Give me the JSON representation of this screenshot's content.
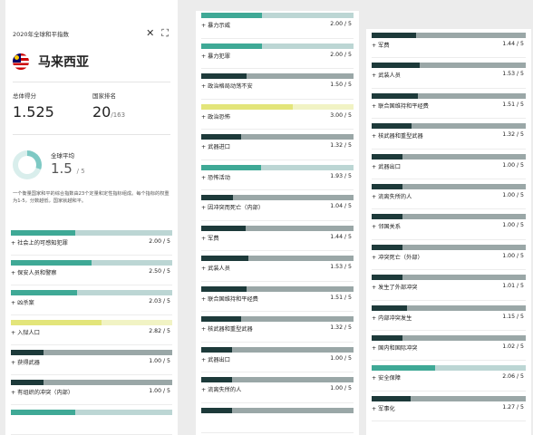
{
  "palette": {
    "teal": "#3fa996",
    "tealTrack": "#bcd6d4",
    "yellow": "#e3e57a",
    "yellowTrack": "#f1f3c4",
    "dark": "#1d3a3a",
    "darkTrack": "#9aa7a7"
  },
  "header": {
    "title": "2020年全球和平指数",
    "close_icon": "close-icon",
    "expand_icon": "expand-icon"
  },
  "country": {
    "name": "马来西亚",
    "flag_icon": "malaysia-flag-icon"
  },
  "overall": {
    "label": "总体得分",
    "value": "1.525"
  },
  "rank": {
    "label": "国家排名",
    "value": "20",
    "total": "/163"
  },
  "global_avg": {
    "label": "全球平均",
    "value": "1.5",
    "of": "/ 5"
  },
  "description": "一个衡量国家和平的综合指数由23个定量和定性指标组成。每个指标的权重为1-5，分数越低，国家就越和平。",
  "col1_rows": [
    {
      "label": "社会上的可感知犯罪",
      "value": "2.00 / 5",
      "fill": 0.4,
      "scheme": "teal"
    },
    {
      "label": "保安人员和警察",
      "value": "2.50 / 5",
      "fill": 0.5,
      "scheme": "teal"
    },
    {
      "label": "凶杀案",
      "value": "2.03 / 5",
      "fill": 0.41,
      "scheme": "teal"
    },
    {
      "label": "入狱人口",
      "value": "2.82 / 5",
      "fill": 0.56,
      "scheme": "yellow"
    },
    {
      "label": "获得武器",
      "value": "1.00 / 5",
      "fill": 0.2,
      "scheme": "dark"
    },
    {
      "label": "有组织的冲突（内部）",
      "value": "1.00 / 5",
      "fill": 0.2,
      "scheme": "dark"
    },
    {
      "label": "",
      "value": "",
      "fill": 0.4,
      "scheme": "teal"
    }
  ],
  "col2_rows": [
    {
      "label": "暴力示威",
      "value": "2.00 / 5",
      "fill": 0.4,
      "scheme": "teal"
    },
    {
      "label": "暴力犯罪",
      "value": "2.00 / 5",
      "fill": 0.4,
      "scheme": "teal"
    },
    {
      "label": "政治格局动荡不安",
      "value": "1.50 / 5",
      "fill": 0.3,
      "scheme": "dark"
    },
    {
      "label": "政治恐怖",
      "value": "3.00 / 5",
      "fill": 0.6,
      "scheme": "yellow"
    },
    {
      "label": "武器进口",
      "value": "1.32 / 5",
      "fill": 0.26,
      "scheme": "dark"
    },
    {
      "label": "恐怖活动",
      "value": "1.93 / 5",
      "fill": 0.39,
      "scheme": "teal"
    },
    {
      "label": "因冲突而死亡（内部）",
      "value": "1.04 / 5",
      "fill": 0.21,
      "scheme": "dark"
    },
    {
      "label": "军费",
      "value": "1.44 / 5",
      "fill": 0.29,
      "scheme": "dark"
    },
    {
      "label": "武装人员",
      "value": "1.53 / 5",
      "fill": 0.31,
      "scheme": "dark"
    },
    {
      "label": "联合国维持和平经费",
      "value": "1.51 / 5",
      "fill": 0.3,
      "scheme": "dark"
    },
    {
      "label": "核武器和重型武器",
      "value": "1.32 / 5",
      "fill": 0.26,
      "scheme": "dark"
    },
    {
      "label": "武器出口",
      "value": "1.00 / 5",
      "fill": 0.2,
      "scheme": "dark"
    },
    {
      "label": "流离失所的人",
      "value": "1.00 / 5",
      "fill": 0.2,
      "scheme": "dark"
    },
    {
      "label": "",
      "value": "",
      "fill": 0.2,
      "scheme": "dark"
    }
  ],
  "col3_rows": [
    {
      "label": "军费",
      "value": "1.44 / 5",
      "fill": 0.29,
      "scheme": "dark"
    },
    {
      "label": "武装人员",
      "value": "1.53 / 5",
      "fill": 0.31,
      "scheme": "dark"
    },
    {
      "label": "联合国维持和平经费",
      "value": "1.51 / 5",
      "fill": 0.3,
      "scheme": "dark"
    },
    {
      "label": "核武器和重型武器",
      "value": "1.32 / 5",
      "fill": 0.26,
      "scheme": "dark"
    },
    {
      "label": "武器出口",
      "value": "1.00 / 5",
      "fill": 0.2,
      "scheme": "dark"
    },
    {
      "label": "流离失所的人",
      "value": "1.00 / 5",
      "fill": 0.2,
      "scheme": "dark"
    },
    {
      "label": "邻国关系",
      "value": "1.00 / 5",
      "fill": 0.2,
      "scheme": "dark"
    },
    {
      "label": "冲突死亡（外部）",
      "value": "1.00 / 5",
      "fill": 0.2,
      "scheme": "dark"
    },
    {
      "label": "发生了外部冲突",
      "value": "1.01 / 5",
      "fill": 0.2,
      "scheme": "dark"
    },
    {
      "label": "内部冲突发生",
      "value": "1.15 / 5",
      "fill": 0.23,
      "scheme": "dark"
    },
    {
      "label": "国内和国际冲突",
      "value": "1.02 / 5",
      "fill": 0.2,
      "scheme": "dark"
    },
    {
      "label": "安全保障",
      "value": "2.06 / 5",
      "fill": 0.41,
      "scheme": "teal"
    },
    {
      "label": "军事化",
      "value": "1.27 / 5",
      "fill": 0.25,
      "scheme": "dark"
    }
  ]
}
